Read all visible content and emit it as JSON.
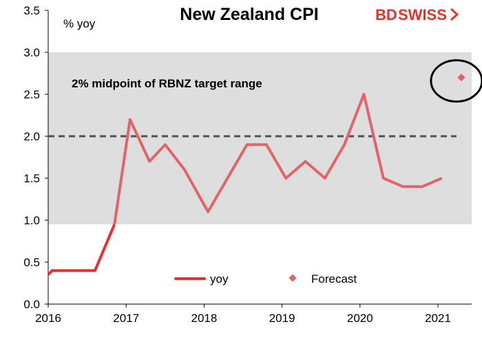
{
  "colors": {
    "series": "#e0656b",
    "series_early": "#ee2e2e",
    "band": "#dedede",
    "target_line": "#505050",
    "brand": "#e4322b",
    "circle": "#000000"
  },
  "logo": {
    "text_bd": "BD",
    "text_swiss": "SWISS",
    "icon": "logo-chevron-icon"
  },
  "chart_data": {
    "type": "line",
    "title": "New Zealand CPI",
    "ylabel": "% yoy",
    "xlabel": "",
    "ylim": [
      0,
      3.5
    ],
    "xlim": [
      2016,
      2021.5
    ],
    "yticks": [
      0.0,
      0.5,
      1.0,
      1.5,
      2.0,
      2.5,
      3.0,
      3.5
    ],
    "ytick_labels": [
      "0.0",
      "0.5",
      "1.0",
      "1.5",
      "2.0",
      "2.5",
      "3.0",
      "3.5"
    ],
    "xticks": [
      2016,
      2017,
      2018,
      2019,
      2020,
      2021
    ],
    "xtick_labels": [
      "2016",
      "2017",
      "2018",
      "2019",
      "2020",
      "2021"
    ],
    "shaded_band": {
      "from": 0.95,
      "to": 3.0,
      "label": "2% midpoint of RBNZ target range"
    },
    "reference_line": {
      "y": 2.0,
      "style": "dashed"
    },
    "series": [
      {
        "name": "yoy",
        "x": [
          2016.0,
          2016.05,
          2016.25,
          2016.5,
          2016.6,
          2016.85,
          2017.05,
          2017.3,
          2017.5,
          2017.75,
          2018.05,
          2018.3,
          2018.55,
          2018.8,
          2019.05,
          2019.3,
          2019.55,
          2019.8,
          2020.05,
          2020.3,
          2020.55,
          2020.8,
          2021.05
        ],
        "values": [
          0.35,
          0.4,
          0.4,
          0.4,
          0.4,
          0.95,
          2.2,
          1.7,
          1.9,
          1.6,
          1.1,
          1.5,
          1.9,
          1.9,
          1.5,
          1.7,
          1.5,
          1.9,
          2.5,
          1.5,
          1.4,
          1.4,
          1.5
        ]
      },
      {
        "name": "Forecast",
        "x": [
          2021.3
        ],
        "values": [
          2.7
        ],
        "highlighted": true
      }
    ],
    "legend": {
      "placement": "bottom-center",
      "entries": [
        "yoy",
        "Forecast"
      ]
    }
  }
}
